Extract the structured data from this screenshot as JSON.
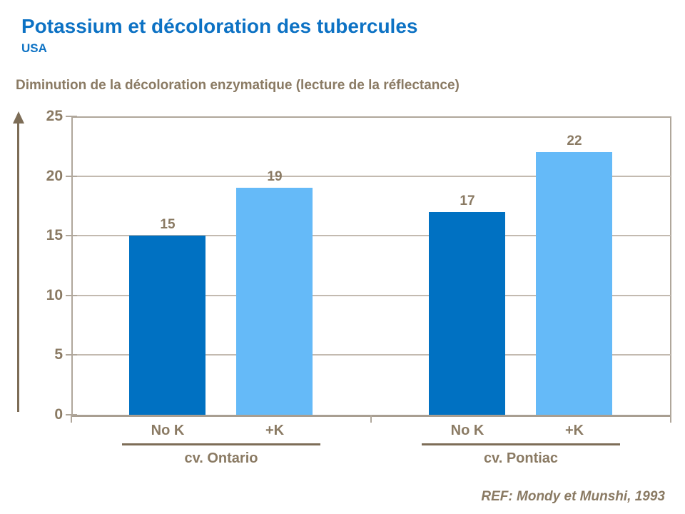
{
  "slide": {
    "title": "Potassium et décoloration des tubercules",
    "subtitle": "USA",
    "chart_heading": "Diminution de la décoloration enzymatique (lecture de la réflectance)",
    "reference": "REF: Mondy et Munshi, 1993"
  },
  "colors": {
    "title_blue": "#0d72c4",
    "bar_dark_blue": "#0071c2",
    "bar_light_blue": "#65baf8",
    "text_brown": "#8a7a63",
    "line_brown": "#7d6d57",
    "grid_tan": "#c3bab0",
    "frame_tan": "#b0a79b"
  },
  "chart_data": {
    "type": "bar",
    "title": "Diminution de la décoloration enzymatique (lecture de la réflectance)",
    "xlabel": "",
    "ylabel": "",
    "ylim": [
      0,
      25
    ],
    "yticks": [
      0,
      5,
      10,
      15,
      20,
      25
    ],
    "grid": true,
    "legend": "none",
    "categories": [
      "cv. Ontario",
      "cv. Pontiac"
    ],
    "series": [
      {
        "name": "No K",
        "values": [
          15,
          17
        ]
      },
      {
        "name": "+K",
        "values": [
          19,
          22
        ]
      }
    ],
    "groups": [
      {
        "name": "cv. Ontario",
        "bars": [
          {
            "label": "No K",
            "value": 15
          },
          {
            "label": "+K",
            "value": 19
          }
        ]
      },
      {
        "name": "cv. Pontiac",
        "bars": [
          {
            "label": "No K",
            "value": 17
          },
          {
            "label": "+K",
            "value": 22
          }
        ]
      }
    ]
  }
}
